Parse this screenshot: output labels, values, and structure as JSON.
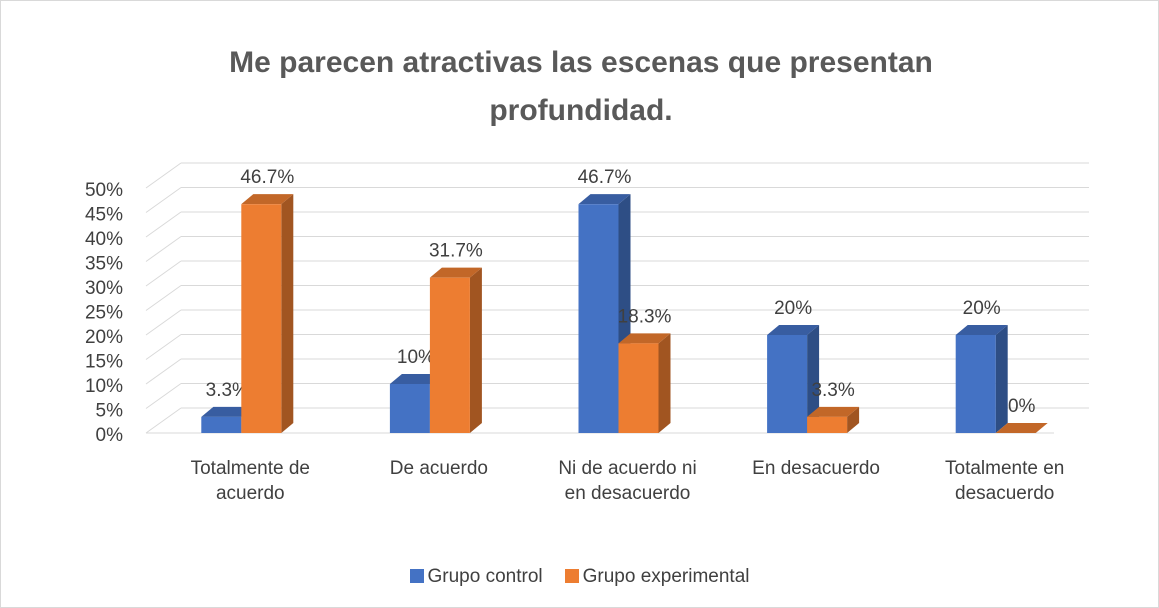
{
  "chart_data": {
    "type": "bar3d",
    "title": "Me parecen atractivas las escenas que presentan profundidad.",
    "categories": [
      "Totalmente de acuerdo",
      "De acuerdo",
      "Ni de acuerdo ni en desacuerdo",
      "En desacuerdo",
      "Totalmente en desacuerdo"
    ],
    "series": [
      {
        "name": "Grupo control",
        "color": "#4472c4",
        "values": [
          3.3,
          10,
          46.7,
          20,
          20
        ],
        "value_labels": [
          "3.3%",
          "10%",
          "46.7%",
          "20%",
          "20%"
        ]
      },
      {
        "name": "Grupo experimental",
        "color": "#ed7d31",
        "values": [
          46.7,
          31.7,
          18.3,
          3.3,
          0
        ],
        "value_labels": [
          "46.7%",
          "31.7%",
          "18.3%",
          "3.3%",
          "0%"
        ]
      }
    ],
    "ylim": [
      0,
      50
    ],
    "yticks": [
      {
        "value": 0,
        "label": "0%"
      },
      {
        "value": 5,
        "label": "5%"
      },
      {
        "value": 10,
        "label": "10%"
      },
      {
        "value": 15,
        "label": "15%"
      },
      {
        "value": 20,
        "label": "20%"
      },
      {
        "value": 25,
        "label": "25%"
      },
      {
        "value": 30,
        "label": "30%"
      },
      {
        "value": 35,
        "label": "35%"
      },
      {
        "value": 40,
        "label": "40%"
      },
      {
        "value": 45,
        "label": "45%"
      },
      {
        "value": 50,
        "label": "50%"
      }
    ],
    "grid": true,
    "legend": "bottom"
  }
}
